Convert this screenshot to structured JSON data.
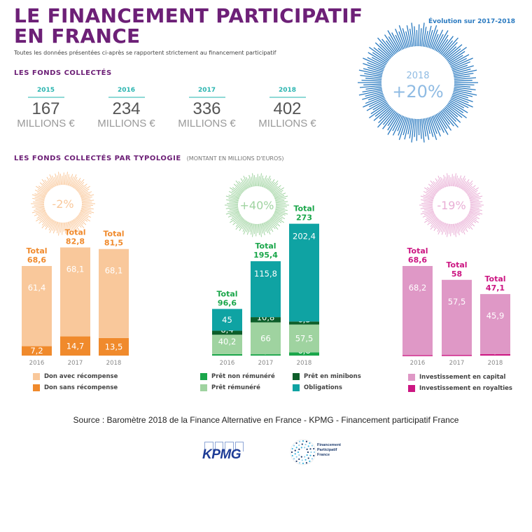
{
  "header": {
    "title_line1": "LE FINANCEMENT PARTICIPATIF",
    "title_line2": "EN FRANCE",
    "subtitle": "Toutes les données présentées ci-après se rapportent strictement au financement participatif",
    "evolution_label": "Évolution sur 2017-2018"
  },
  "funds": {
    "heading": "LES FONDS COLLECTÉS",
    "unit": "MILLIONS €",
    "years": [
      {
        "year": "2015",
        "value": "167"
      },
      {
        "year": "2016",
        "value": "234"
      },
      {
        "year": "2017",
        "value": "336"
      },
      {
        "year": "2018",
        "value": "402"
      }
    ],
    "badge": {
      "year": "2018",
      "change": "+20%",
      "color": "#2a7ac0"
    }
  },
  "typology": {
    "heading": "LES FONDS COLLECTÉS PAR TYPOLOGIE",
    "note": "(MONTANT EN MILLIONS D'EUROS)"
  },
  "chart_data": [
    {
      "type": "bar",
      "stacked": true,
      "change": "-2%",
      "total_label": "Total",
      "categories": [
        "2016",
        "2017",
        "2018"
      ],
      "totals": [
        "68,6",
        "82,8",
        "81,5"
      ],
      "total_values": [
        68.6,
        82.8,
        81.5
      ],
      "color": "#f08a2c",
      "series": [
        {
          "name": "Don sans récompense",
          "values": [
            7.2,
            14.7,
            13.5
          ],
          "labels": [
            "7,2",
            "14,7",
            "13,5"
          ],
          "color": "#f08a2c"
        },
        {
          "name": "Don avec récompense",
          "values": [
            61.4,
            68.1,
            68.1
          ],
          "labels": [
            "61,4",
            "68,1",
            "68,1"
          ],
          "color": "#f9c89b"
        }
      ],
      "legend": [
        "Don avec récompense",
        "Don sans récompense"
      ]
    },
    {
      "type": "bar",
      "stacked": true,
      "change": "+40%",
      "total_label": "Total",
      "categories": [
        "2016",
        "2017",
        "2018"
      ],
      "totals": [
        "96,6",
        "195,4",
        "273"
      ],
      "total_values": [
        96.6,
        195.4,
        273
      ],
      "color": "#1aa64a",
      "series": [
        {
          "name": "Prêt non rémunéré",
          "values": [
            3,
            2.8,
            6.8
          ],
          "labels": [
            "3",
            "2,8",
            "6,8"
          ],
          "color": "#1aa64a"
        },
        {
          "name": "Prêt rémunéré",
          "values": [
            40.2,
            66,
            57.5
          ],
          "labels": [
            "40,2",
            "66",
            "57,5"
          ],
          "color": "#9fd3a0"
        },
        {
          "name": "Prêt en minibons",
          "values": [
            8.4,
            10.8,
            6.3
          ],
          "labels": [
            "8,4",
            "10,8",
            "6,3"
          ],
          "color": "#0d5e2a"
        },
        {
          "name": "Obligations",
          "values": [
            45,
            115.8,
            202.4
          ],
          "labels": [
            "45",
            "115,8",
            "202,4"
          ],
          "color": "#0fa3a3"
        }
      ],
      "legend": [
        "Prêt non rémunéré",
        "Prêt en minibons",
        "Prêt rémunéré",
        "Obligations"
      ]
    },
    {
      "type": "bar",
      "stacked": true,
      "change": "-19%",
      "total_label": "Total",
      "categories": [
        "2016",
        "2017",
        "2018"
      ],
      "totals": [
        "68,6",
        "58",
        "47,1"
      ],
      "total_values": [
        68.6,
        58,
        47.1
      ],
      "color": "#cc1682",
      "series": [
        {
          "name": "Investissement en royalties",
          "values": [
            0.4,
            0.5,
            1.2
          ],
          "labels": [
            "0,4",
            "0,5",
            "1,2"
          ],
          "color": "#cc1682"
        },
        {
          "name": "Investissement en capital",
          "values": [
            68.2,
            57.5,
            45.9
          ],
          "labels": [
            "68,2",
            "57,5",
            "45,9"
          ],
          "color": "#df98c6"
        }
      ],
      "legend": [
        "Investissement en capital",
        "Investissement en royalties"
      ]
    }
  ],
  "footer": {
    "source": "Source : Baromètre 2018 de la Finance Alternative en France - KPMG - Financement participatif France",
    "logos": [
      {
        "name": "KPMG",
        "text": "KPMG"
      },
      {
        "name": "Financement Participatif France",
        "text": [
          "Financement",
          "Participatif",
          "France"
        ]
      }
    ]
  }
}
